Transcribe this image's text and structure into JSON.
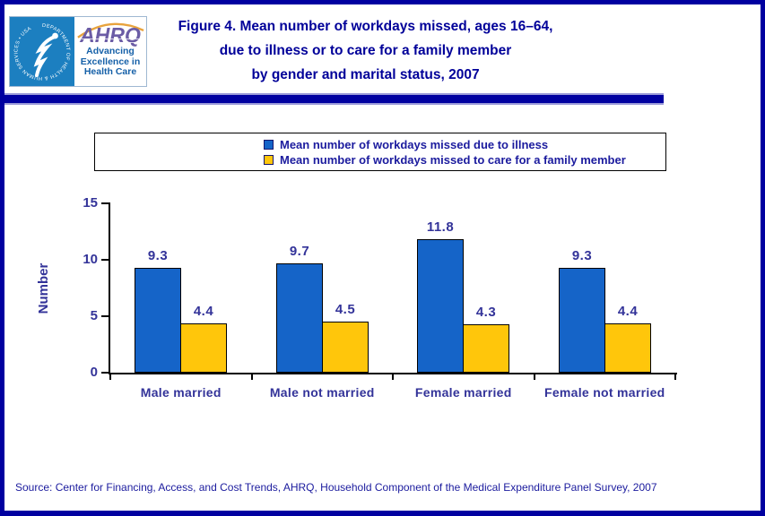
{
  "header": {
    "logo": {
      "hhs_circle_text": "DEPARTMENT OF HEALTH & HUMAN SERVICES • USA",
      "ahrq_acronym": "AHRQ",
      "ahrq_tagline": "Advancing Excellence in Health Care"
    },
    "title": {
      "line1": "Figure 4. Mean number of workdays missed, ages 16–64,",
      "line2": "due to illness or to care for a family member",
      "line3": "by gender and marital status, 2007"
    }
  },
  "chart_data": {
    "type": "bar",
    "title": "Figure 4. Mean number of workdays missed, ages 16–64, due to illness or to care for a family member by gender and marital status, 2007",
    "categories": [
      "Male married",
      "Male not married",
      "Female married",
      "Female not married"
    ],
    "series": [
      {
        "name": "Mean number of workdays missed due to illness",
        "color": "#1564C8",
        "values": [
          9.3,
          9.7,
          11.8,
          9.3
        ]
      },
      {
        "name": "Mean number of workdays missed to care for a family member",
        "color": "#FFC60B",
        "values": [
          4.4,
          4.5,
          4.3,
          4.4
        ]
      }
    ],
    "xlabel": "",
    "ylabel": "Number",
    "ylim": [
      0,
      15
    ],
    "yticks": [
      0,
      5,
      10,
      15
    ],
    "grid": false,
    "legend_position": "top-center",
    "value_labels": true
  },
  "source": "Source: Center for Financing, Access, and Cost Trends, AHRQ, Household Component of the Medical Expenditure Panel Survey, 2007",
  "colors": {
    "page_border": "#0000A0",
    "title_text": "#000099",
    "divider_bar": "#0000A0",
    "chart_text": "#333399",
    "legend_text": "#1B1B9E",
    "source_text": "#1B1B9E",
    "bar_illness": "#1564C8",
    "bar_family": "#FFC60B",
    "axis": "#000000",
    "hhs_blue": "#1C7FC0",
    "ahrq_purple": "#6B5CA5",
    "ahrq_tagline_blue": "#1560A8",
    "ahrq_arc_orange": "#E8A33D"
  }
}
